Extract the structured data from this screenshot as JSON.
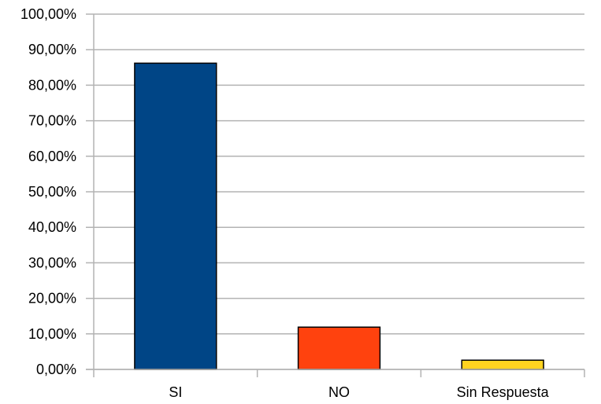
{
  "chart_data": {
    "type": "bar",
    "categories": [
      "SI",
      "NO",
      "Sin Respuesta"
    ],
    "values": [
      86.2,
      11.9,
      2.6
    ],
    "ylim": [
      0,
      100
    ],
    "yticks": [
      0,
      10,
      20,
      30,
      40,
      50,
      60,
      70,
      80,
      90,
      100
    ],
    "ytick_labels": [
      "0,00%",
      "10,00%",
      "20,00%",
      "30,00%",
      "40,00%",
      "50,00%",
      "60,00%",
      "70,00%",
      "80,00%",
      "90,00%",
      "100,00%"
    ],
    "colors": [
      "#004586",
      "#ff420e",
      "#ffd320"
    ],
    "grid": true,
    "legend": "none"
  }
}
